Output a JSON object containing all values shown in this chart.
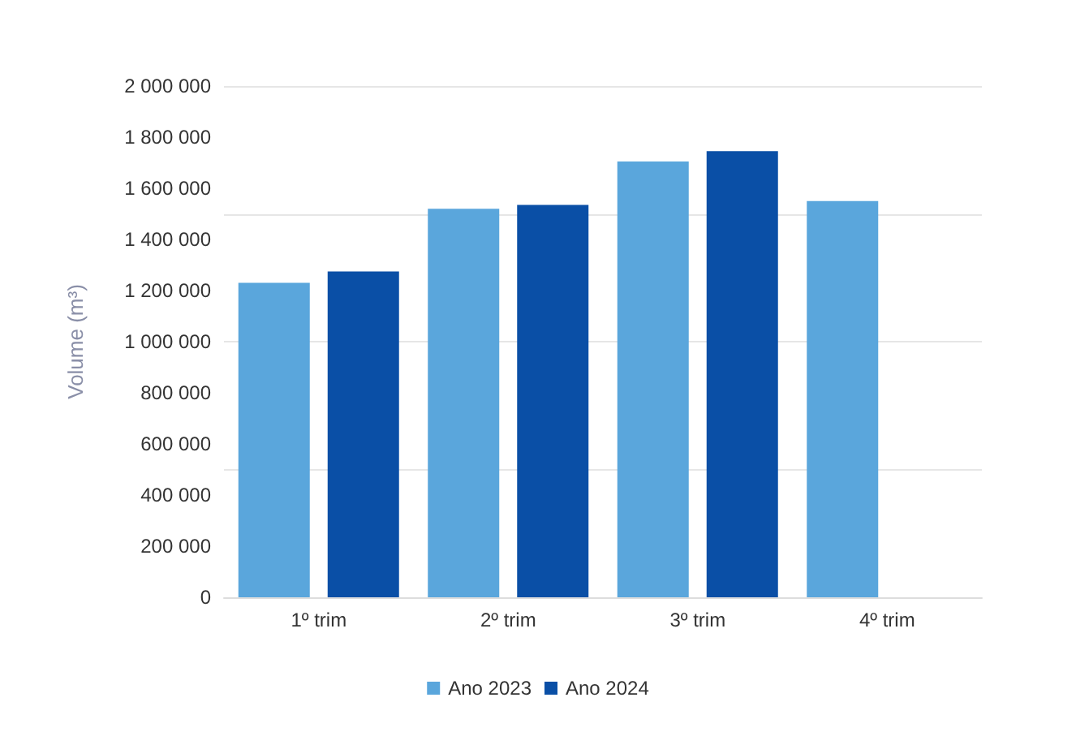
{
  "chart_data": {
    "type": "bar",
    "ylabel": "Volume (m³)",
    "categories": [
      "1º trim",
      "2º trim",
      "3º trim",
      "4º trim"
    ],
    "series": [
      {
        "name": "Ano 2023",
        "color": "#5aa6dc",
        "values": [
          1230000,
          1520000,
          1705000,
          1550000
        ]
      },
      {
        "name": "Ano 2024",
        "color": "#0a4fa6",
        "values": [
          1275000,
          1535000,
          1745000,
          null
        ]
      }
    ],
    "ylim": [
      0,
      2000000
    ],
    "yticks": [
      0,
      {
        "value": 200000,
        "label": "200 000"
      },
      {
        "value": 400000,
        "label": "400 000"
      },
      {
        "value": 600000,
        "label": "600 000"
      },
      {
        "value": 800000,
        "label": "800 000"
      },
      {
        "value": 1000000,
        "label": "1 000 000"
      },
      {
        "value": 1200000,
        "label": "1 200 000"
      },
      {
        "value": 1400000,
        "label": "1 400 000"
      },
      {
        "value": 1600000,
        "label": "1 600 000"
      },
      {
        "value": 1800000,
        "label": "1 800 000"
      },
      {
        "value": 2000000,
        "label": "2 000 000"
      }
    ],
    "grid": true,
    "legend": "bottom"
  }
}
